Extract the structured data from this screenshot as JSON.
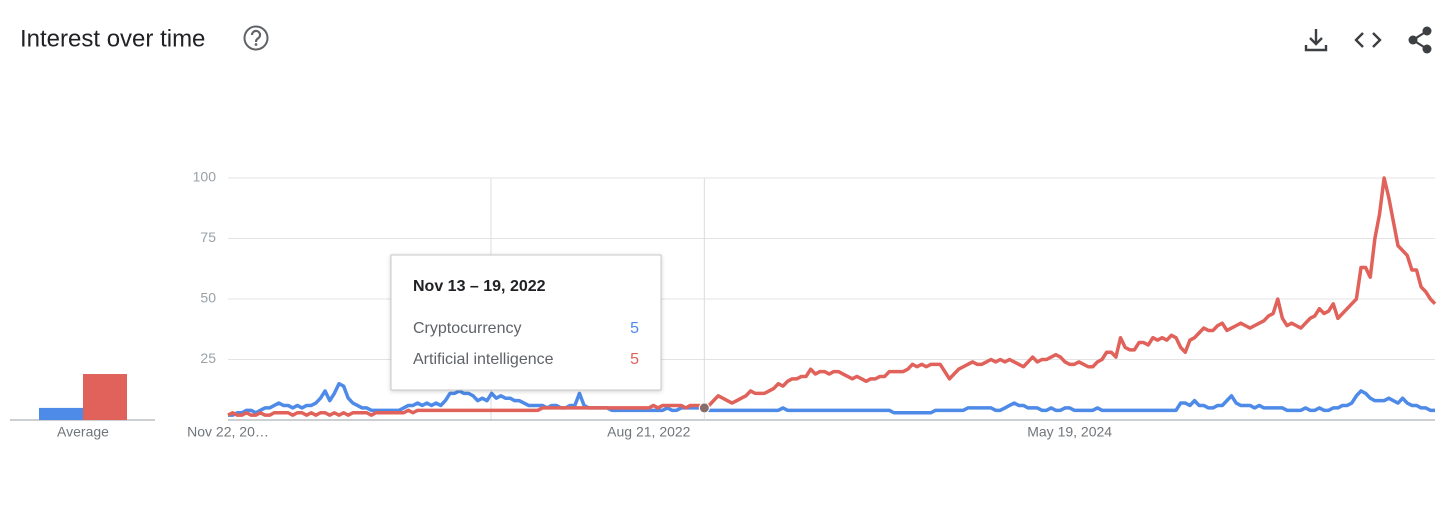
{
  "chart_data": {
    "type": "line",
    "title": "Interest over time",
    "categories": [
      "Nov 22, 20…",
      null,
      null,
      null,
      null,
      null,
      null,
      null,
      null,
      null,
      null,
      null,
      null,
      null,
      null,
      null,
      null,
      null,
      null,
      null,
      null,
      null,
      null,
      null,
      null,
      null,
      null,
      null,
      null,
      null,
      null,
      null,
      null,
      null,
      null,
      null,
      null,
      null,
      null,
      null,
      null,
      null,
      null,
      null,
      null,
      null,
      null,
      null,
      null,
      null,
      null,
      null,
      null,
      null,
      null,
      null,
      null,
      null,
      null,
      null,
      null,
      null,
      null,
      null,
      null,
      null,
      null,
      null,
      null,
      null,
      null,
      null,
      null,
      null,
      null,
      null,
      null,
      null,
      null,
      null,
      null,
      null,
      null,
      null,
      null,
      null,
      null,
      null,
      null,
      null,
      null,
      "Aug 21, 2022",
      null,
      null,
      null,
      null,
      null,
      null,
      null,
      null,
      null,
      null,
      null,
      null,
      null,
      null,
      null,
      null,
      null,
      null,
      null,
      null,
      null,
      null,
      null,
      null,
      null,
      null,
      null,
      null,
      null,
      null,
      null,
      null,
      null,
      null,
      null,
      null,
      null,
      null,
      null,
      null,
      null,
      null,
      null,
      null,
      null,
      null,
      null,
      null,
      null,
      null,
      null,
      null,
      null,
      null,
      null,
      null,
      null,
      null,
      null,
      null,
      null,
      null,
      null,
      null,
      null,
      null,
      null,
      null,
      null,
      null,
      null,
      null,
      null,
      null,
      null,
      null,
      null,
      null,
      null,
      null,
      null,
      null,
      null,
      null,
      null,
      null,
      null,
      null,
      null,
      null,
      "May 19, 2024",
      null,
      null,
      null,
      null,
      null,
      null,
      null,
      null,
      null,
      null,
      null,
      null,
      null,
      null,
      null,
      null,
      null,
      null,
      null,
      null,
      null,
      null,
      null,
      null,
      null,
      null,
      null,
      null,
      null,
      null,
      null,
      null,
      null,
      null,
      null,
      null,
      null,
      null,
      null,
      null,
      null,
      null,
      null,
      null,
      null,
      null,
      null,
      null,
      null,
      null,
      null,
      null,
      null,
      null,
      null,
      null,
      null,
      null,
      null,
      null,
      null,
      null,
      null,
      null,
      null,
      null,
      null,
      null,
      null,
      null,
      null,
      null,
      null,
      null,
      null,
      null,
      null,
      null,
      null
    ],
    "series": [
      {
        "name": "Cryptocurrency",
        "color": "#4e8ae8",
        "average": 5,
        "values": [
          2,
          2,
          3,
          3,
          4,
          4,
          3,
          4,
          5,
          5,
          6,
          7,
          6,
          6,
          5,
          6,
          5,
          6,
          6,
          7,
          9,
          12,
          8,
          11,
          15,
          14,
          9,
          7,
          6,
          5,
          5,
          4,
          4,
          4,
          4,
          4,
          4,
          4,
          5,
          6,
          6,
          7,
          6,
          7,
          6,
          7,
          6,
          8,
          11,
          11,
          12,
          11,
          11,
          10,
          8,
          9,
          8,
          11,
          9,
          10,
          9,
          9,
          8,
          8,
          7,
          6,
          6,
          6,
          6,
          5,
          6,
          6,
          5,
          5,
          6,
          6,
          11,
          6,
          5,
          5,
          5,
          5,
          5,
          4,
          4,
          4,
          4,
          4,
          4,
          4,
          4,
          4,
          4,
          4,
          4,
          5,
          4,
          4,
          5,
          5,
          5,
          5,
          5,
          5,
          4,
          4,
          4,
          4,
          4,
          4,
          4,
          4,
          4,
          4,
          4,
          4,
          4,
          4,
          4,
          4,
          5,
          4,
          4,
          4,
          4,
          4,
          4,
          4,
          4,
          4,
          4,
          4,
          4,
          4,
          4,
          4,
          4,
          4,
          4,
          4,
          4,
          4,
          4,
          4,
          3,
          3,
          3,
          3,
          3,
          3,
          3,
          3,
          3,
          4,
          4,
          4,
          4,
          4,
          4,
          4,
          5,
          5,
          5,
          5,
          5,
          5,
          4,
          4,
          5,
          6,
          7,
          6,
          6,
          5,
          5,
          5,
          4,
          4,
          5,
          4,
          4,
          5,
          5,
          4,
          4,
          4,
          4,
          4,
          5,
          4,
          4,
          4,
          4,
          4,
          4,
          4,
          4,
          4,
          4,
          4,
          4,
          4,
          4,
          4,
          4,
          4,
          7,
          7,
          6,
          8,
          6,
          6,
          5,
          5,
          6,
          6,
          8,
          10,
          7,
          6,
          6,
          6,
          5,
          6,
          5,
          5,
          5,
          5,
          5,
          4,
          4,
          4,
          4,
          5,
          4,
          4,
          5,
          4,
          4,
          5,
          5,
          6,
          6,
          7,
          10,
          12,
          11,
          9,
          8,
          8,
          8,
          9,
          8,
          7,
          9,
          7,
          6,
          6,
          5,
          5,
          4,
          4
        ]
      },
      {
        "name": "Artificial intelligence",
        "color": "#e0625a",
        "average": 19,
        "values": [
          2,
          3,
          2,
          2,
          3,
          2,
          2,
          3,
          2,
          2,
          3,
          3,
          3,
          3,
          2,
          3,
          3,
          2,
          3,
          2,
          3,
          3,
          2,
          3,
          2,
          3,
          2,
          3,
          3,
          3,
          3,
          2,
          3,
          3,
          3,
          3,
          3,
          3,
          3,
          4,
          3,
          4,
          4,
          4,
          4,
          4,
          4,
          4,
          4,
          4,
          4,
          4,
          4,
          4,
          4,
          4,
          4,
          4,
          4,
          4,
          4,
          4,
          4,
          4,
          4,
          4,
          4,
          4,
          5,
          5,
          5,
          5,
          5,
          5,
          5,
          5,
          5,
          5,
          5,
          5,
          5,
          5,
          5,
          5,
          5,
          5,
          5,
          5,
          5,
          5,
          5,
          5,
          6,
          5,
          6,
          6,
          6,
          6,
          6,
          5,
          6,
          6,
          6,
          5,
          6,
          8,
          10,
          9,
          8,
          7,
          8,
          9,
          10,
          12,
          11,
          11,
          11,
          12,
          13,
          15,
          14,
          16,
          17,
          17,
          18,
          18,
          21,
          19,
          20,
          20,
          19,
          20,
          20,
          19,
          18,
          17,
          18,
          17,
          16,
          17,
          17,
          18,
          18,
          20,
          20,
          20,
          20,
          21,
          23,
          22,
          23,
          22,
          23,
          23,
          23,
          20,
          17,
          19,
          21,
          22,
          23,
          24,
          23,
          23,
          24,
          25,
          24,
          25,
          24,
          25,
          24,
          23,
          22,
          24,
          26,
          24,
          25,
          25,
          26,
          27,
          26,
          24,
          23,
          23,
          24,
          23,
          22,
          22,
          24,
          25,
          28,
          28,
          26,
          34,
          30,
          29,
          29,
          32,
          32,
          31,
          34,
          33,
          34,
          33,
          35,
          34,
          30,
          28,
          33,
          34,
          36,
          38,
          37,
          37,
          39,
          40,
          37,
          38,
          39,
          40,
          39,
          38,
          39,
          40,
          41,
          43,
          44,
          50,
          42,
          39,
          40,
          39,
          38,
          40,
          42,
          43,
          46,
          44,
          45,
          48,
          42,
          44,
          46,
          48,
          50,
          63,
          63,
          59,
          75,
          85,
          100,
          92,
          82,
          72,
          70,
          68,
          62,
          62,
          55,
          53,
          50,
          48
        ]
      }
    ],
    "average_label": "Average",
    "tooltip_title": "Nov 13 – 19, 2022",
    "ylim": [
      0,
      100
    ],
    "yticks": [
      25,
      50,
      75,
      100
    ],
    "grid": true
  }
}
